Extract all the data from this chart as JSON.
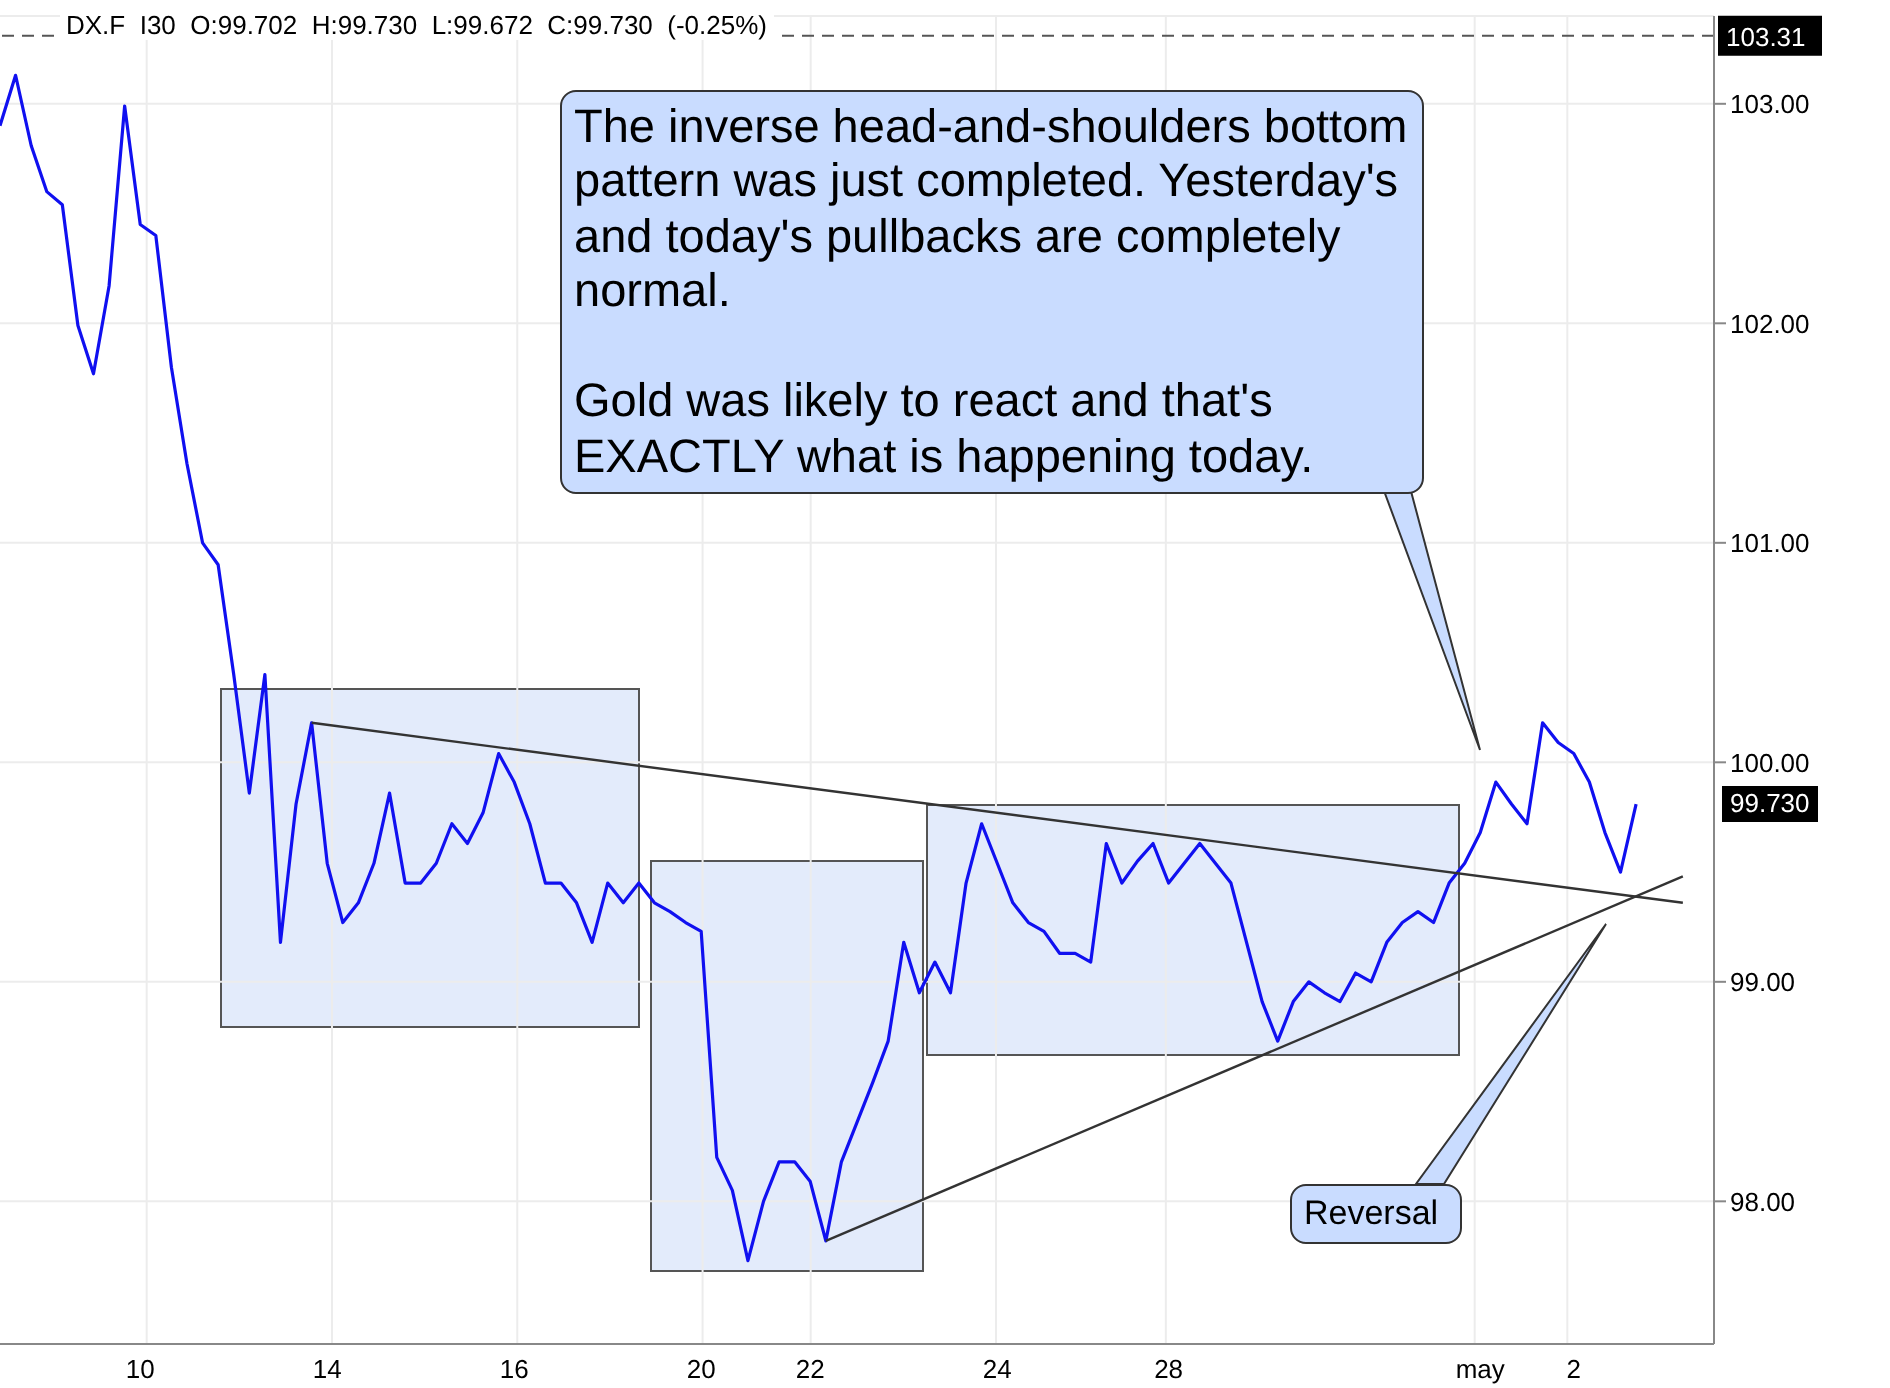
{
  "chart_data": {
    "type": "line",
    "title": "DX.F  I30  O:99.702  H:99.730  L:99.672  C:99.730  (-0.25%)",
    "categories": [
      null,
      null,
      null,
      null,
      null,
      null,
      null,
      null,
      null,
      "10",
      null,
      null,
      null,
      null,
      null,
      null,
      null,
      null,
      null,
      null,
      null,
      "14",
      null,
      null,
      null,
      null,
      null,
      null,
      null,
      null,
      null,
      null,
      null,
      "16",
      null,
      null,
      null,
      null,
      null,
      null,
      null,
      null,
      null,
      null,
      null,
      "20",
      null,
      null,
      null,
      null,
      null,
      null,
      "22",
      null,
      null,
      null,
      null,
      null,
      null,
      null,
      null,
      null,
      null,
      null,
      "24",
      null,
      null,
      null,
      null,
      null,
      null,
      null,
      null,
      null,
      null,
      "28",
      null,
      null,
      null,
      null,
      null,
      null,
      null,
      null,
      null,
      null,
      null,
      null,
      null,
      null,
      null,
      null,
      null,
      null,
      null,
      "may",
      null,
      null,
      null,
      null,
      null,
      "2",
      null,
      null,
      null,
      null,
      null,
      null,
      null,
      null,
      null
    ],
    "ylim": [
      97.35,
      103.4
    ],
    "yticks": [
      {
        "value": 98,
        "label": "98.00"
      },
      {
        "value": 99,
        "label": "99.00"
      },
      {
        "value": 100,
        "label": "100.00"
      },
      {
        "value": 101,
        "label": "101.00"
      },
      {
        "value": 102,
        "label": "102.00"
      },
      {
        "value": 103,
        "label": "103.00"
      }
    ],
    "grid": true,
    "marker": "none",
    "line_style": "solid",
    "series": [
      {
        "color": "#1010f0",
        "values": [
          102.9,
          103.13,
          102.81,
          102.6,
          102.54,
          101.99,
          101.77,
          102.17,
          102.99,
          102.45,
          102.4,
          101.8,
          101.36,
          101,
          100.9,
          100.4,
          99.86,
          100.4,
          99.18,
          99.81,
          100.18,
          99.54,
          99.27,
          99.36,
          99.54,
          99.86,
          99.45,
          99.45,
          99.54,
          99.72,
          99.63,
          99.77,
          100.04,
          99.91,
          99.72,
          99.45,
          99.45,
          99.36,
          99.18,
          99.45,
          99.36,
          99.45,
          99.36,
          99.32,
          99.27,
          99.23,
          98.2,
          98.05,
          97.73,
          98,
          98.18,
          98.18,
          98.09,
          97.82,
          98.18,
          98.36,
          98.54,
          98.73,
          99.18,
          98.95,
          99.09,
          98.95,
          99.45,
          99.72,
          99.54,
          99.36,
          99.27,
          99.23,
          99.13,
          99.13,
          99.09,
          99.63,
          99.45,
          99.55,
          99.63,
          99.45,
          99.54,
          99.63,
          99.54,
          99.45,
          99.18,
          98.91,
          98.73,
          98.91,
          99,
          98.95,
          98.91,
          99.04,
          99,
          99.18,
          99.27,
          99.32,
          99.27,
          99.45,
          99.54,
          99.68,
          99.91,
          99.81,
          99.72,
          100.18,
          100.09,
          100.04,
          99.91,
          99.68,
          99.5,
          99.81,
          null,
          null,
          null,
          null,
          null
        ]
      },
      {
        "color": "#333333",
        "values": [
          null,
          null,
          null,
          null,
          null,
          null,
          null,
          null,
          null,
          null,
          null,
          null,
          null,
          null,
          null,
          null,
          null,
          null,
          null,
          null,
          100.18,
          null,
          null,
          null,
          null,
          null,
          null,
          null,
          null,
          null,
          null,
          null,
          null,
          null,
          null,
          null,
          null,
          null,
          null,
          null,
          null,
          null,
          null,
          null,
          null,
          null,
          null,
          null,
          null,
          null,
          null,
          null,
          null,
          null,
          null,
          null,
          null,
          null,
          null,
          null,
          null,
          null,
          null,
          null,
          null,
          null,
          null,
          null,
          null,
          null,
          null,
          null,
          null,
          null,
          null,
          null,
          null,
          null,
          null,
          null,
          null,
          null,
          null,
          null,
          null,
          null,
          null,
          null,
          null,
          null,
          null,
          null,
          null,
          null,
          null,
          null,
          null,
          null,
          null,
          null,
          null,
          null,
          null,
          null,
          null,
          null,
          null,
          null,
          99.36,
          null,
          null
        ]
      },
      {
        "color": "#333333",
        "values": [
          null,
          null,
          null,
          null,
          null,
          null,
          null,
          null,
          null,
          null,
          null,
          null,
          null,
          null,
          null,
          null,
          null,
          null,
          null,
          null,
          null,
          null,
          null,
          null,
          null,
          null,
          null,
          null,
          null,
          null,
          null,
          null,
          null,
          null,
          null,
          null,
          null,
          null,
          null,
          null,
          null,
          null,
          null,
          null,
          null,
          null,
          null,
          null,
          null,
          null,
          null,
          null,
          null,
          97.82,
          null,
          null,
          null,
          null,
          null,
          null,
          null,
          null,
          null,
          null,
          null,
          null,
          null,
          null,
          null,
          null,
          null,
          null,
          null,
          null,
          null,
          null,
          null,
          null,
          null,
          null,
          null,
          null,
          null,
          null,
          null,
          null,
          null,
          null,
          null,
          null,
          null,
          null,
          null,
          null,
          null,
          null,
          null,
          null,
          null,
          null,
          null,
          null,
          null,
          null,
          null,
          null,
          null,
          null,
          99.48,
          null,
          null
        ]
      }
    ],
    "ref_lines": [
      {
        "axis": "y",
        "value": 103.31,
        "label": "103.31",
        "color": "#555555",
        "line_style": "dashed"
      }
    ],
    "annotations": [
      "The inverse head-and-shoulders bottom pattern was just completed. Yesterday's and today's pullbacks are completely normal.\n\nGold was likely to react and that's EXACTLY what is happening today.",
      "Reversal",
      "99.730"
    ]
  }
}
